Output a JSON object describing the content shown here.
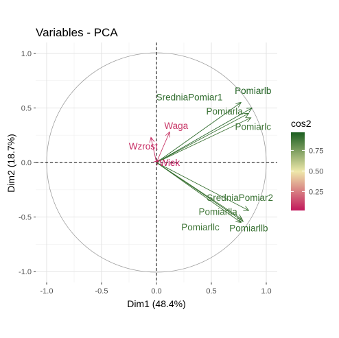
{
  "chart_data": {
    "type": "scatter",
    "subtype": "pca-variable-correlation-circle",
    "title": "Variables - PCA",
    "xlabel": "Dim1 (48.4%)",
    "ylabel": "Dim2 (18.7%)",
    "xlim": [
      -1.1,
      1.1
    ],
    "ylim": [
      -1.1,
      1.1
    ],
    "x_ticks": [
      -1.0,
      -0.5,
      0.0,
      0.5,
      1.0
    ],
    "y_ticks": [
      -1.0,
      -0.5,
      0.0,
      0.5,
      1.0
    ],
    "x_tick_labels": [
      "-1.0",
      "-0.5",
      "0.0",
      "0.5",
      "1.0"
    ],
    "y_tick_labels": [
      "-1.0",
      "-0.5",
      "0.0",
      "0.5",
      "1.0"
    ],
    "grid": true,
    "legend": {
      "title": "cos2",
      "placement": "right",
      "range": [
        0.02,
        0.97
      ],
      "ticks": [
        0.25,
        0.5,
        0.75
      ],
      "tick_labels": [
        "0.25",
        "0.50",
        "0.75"
      ],
      "colors": [
        "#C2185B",
        "#EEE8AA",
        "#1B5E20"
      ]
    },
    "variables": [
      {
        "label": "Pomiarlb",
        "x": 0.87,
        "y": 0.5,
        "cos2": 0.95,
        "lx": 0.88,
        "ly": 0.66
      },
      {
        "label": "SredniaPomiar1",
        "x": 0.77,
        "y": 0.55,
        "cos2": 0.92,
        "lx": 0.3,
        "ly": 0.6
      },
      {
        "label": "Pomiarla",
        "x": 0.84,
        "y": 0.45,
        "cos2": 0.9,
        "lx": 0.62,
        "ly": 0.47
      },
      {
        "label": "Pomiarlc",
        "x": 0.86,
        "y": 0.41,
        "cos2": 0.89,
        "lx": 0.88,
        "ly": 0.33
      },
      {
        "label": "Waga",
        "x": 0.12,
        "y": 0.28,
        "cos2": 0.09,
        "lx": 0.18,
        "ly": 0.34
      },
      {
        "label": "Wzrost",
        "x": -0.05,
        "y": 0.23,
        "cos2": 0.06,
        "lx": -0.12,
        "ly": 0.15
      },
      {
        "label": "Wiek",
        "x": 0.02,
        "y": 0.02,
        "cos2": 0.02,
        "lx": 0.12,
        "ly": 0.0
      },
      {
        "label": "SredniaPomiar2",
        "x": 0.84,
        "y": -0.44,
        "cos2": 0.9,
        "lx": 0.76,
        "ly": -0.32
      },
      {
        "label": "Pomiarlla",
        "x": 0.78,
        "y": -0.52,
        "cos2": 0.88,
        "lx": 0.56,
        "ly": -0.45
      },
      {
        "label": "Pomiarllc",
        "x": 0.77,
        "y": -0.55,
        "cos2": 0.89,
        "lx": 0.4,
        "ly": -0.59
      },
      {
        "label": "Pomiarllb",
        "x": 0.79,
        "y": -0.54,
        "cos2": 0.91,
        "lx": 0.84,
        "ly": -0.6
      }
    ]
  }
}
